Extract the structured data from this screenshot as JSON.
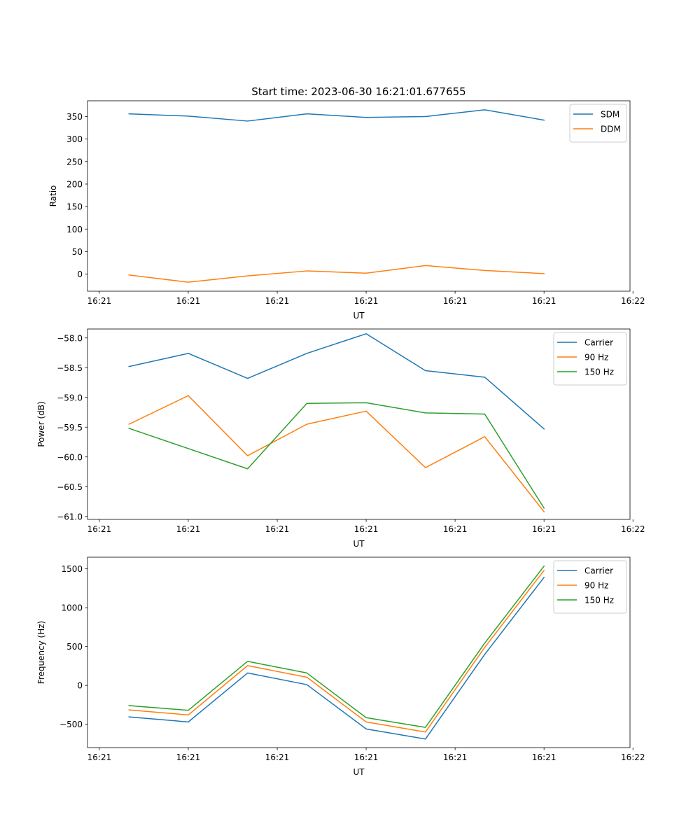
{
  "figure": {
    "title": "Start time: 2023-06-30 16:21:01.677655"
  },
  "colors": {
    "blue": "#1f77b4",
    "orange": "#ff7f0e",
    "green": "#2ca02c"
  },
  "chart_data": [
    {
      "type": "line",
      "title": "Start time: 2023-06-30 16:21:01.677655",
      "xlabel": "UT",
      "ylabel": "Ratio",
      "x": [
        1,
        2,
        3,
        4,
        5,
        6,
        7,
        8
      ],
      "xlim": [
        0.3,
        9.45
      ],
      "xticks": [
        0.5,
        2,
        3.5,
        5,
        6.5,
        8,
        9.5
      ],
      "xtick_labels": [
        "16:21",
        "16:21",
        "16:21",
        "16:21",
        "16:21",
        "16:21",
        "16:22"
      ],
      "ylim": [
        -38,
        385
      ],
      "yticks": [
        0,
        50,
        100,
        150,
        200,
        250,
        300,
        350
      ],
      "ytick_labels": [
        "0",
        "50",
        "100",
        "150",
        "200",
        "250",
        "300",
        "350"
      ],
      "legend": "top-right",
      "series": [
        {
          "name": "SDM",
          "color": "#1f77b4",
          "values": [
            356,
            351,
            340,
            356,
            348,
            350,
            365,
            342
          ]
        },
        {
          "name": "DDM",
          "color": "#ff7f0e",
          "values": [
            -2,
            -18,
            -4,
            7,
            2,
            19,
            8,
            1
          ]
        }
      ]
    },
    {
      "type": "line",
      "xlabel": "UT",
      "ylabel": "Power (dB)",
      "x": [
        1,
        2,
        3,
        4,
        5,
        6,
        7,
        8
      ],
      "xlim": [
        0.3,
        9.45
      ],
      "xticks": [
        0.5,
        2,
        3.5,
        5,
        6.5,
        8,
        9.5
      ],
      "xtick_labels": [
        "16:21",
        "16:21",
        "16:21",
        "16:21",
        "16:21",
        "16:21",
        "16:22"
      ],
      "ylim": [
        -61.05,
        -57.85
      ],
      "yticks": [
        -61.0,
        -60.5,
        -60.0,
        -59.5,
        -59.0,
        -58.5,
        -58.0
      ],
      "ytick_labels": [
        "−61.0",
        "−60.5",
        "−60.0",
        "−59.5",
        "−59.0",
        "−58.5",
        "−58.0"
      ],
      "legend": "top-right",
      "series": [
        {
          "name": "Carrier",
          "color": "#1f77b4",
          "values": [
            -58.48,
            -58.26,
            -58.68,
            -58.26,
            -57.93,
            -58.55,
            -58.66,
            -59.53
          ]
        },
        {
          "name": "90 Hz",
          "color": "#ff7f0e",
          "values": [
            -59.45,
            -58.97,
            -59.98,
            -59.45,
            -59.23,
            -60.18,
            -59.66,
            -60.92
          ]
        },
        {
          "name": "150 Hz",
          "color": "#2ca02c",
          "values": [
            -59.52,
            -59.86,
            -60.2,
            -59.1,
            -59.09,
            -59.26,
            -59.28,
            -60.86
          ]
        }
      ]
    },
    {
      "type": "line",
      "xlabel": "UT",
      "ylabel": "Frequency (Hz)",
      "x": [
        1,
        2,
        3,
        4,
        5,
        6,
        7,
        8
      ],
      "xlim": [
        0.3,
        9.45
      ],
      "xticks": [
        0.5,
        2,
        3.5,
        5,
        6.5,
        8,
        9.5
      ],
      "xtick_labels": [
        "16:21",
        "16:21",
        "16:21",
        "16:21",
        "16:21",
        "16:21",
        "16:22"
      ],
      "ylim": [
        -800,
        1650
      ],
      "yticks": [
        -500,
        0,
        500,
        1000,
        1500
      ],
      "ytick_labels": [
        "−500",
        "0",
        "500",
        "1000",
        "1500"
      ],
      "legend": "top-right",
      "series": [
        {
          "name": "Carrier",
          "color": "#1f77b4",
          "values": [
            -405,
            -470,
            160,
            10,
            -560,
            -690,
            400,
            1390
          ]
        },
        {
          "name": "90 Hz",
          "color": "#ff7f0e",
          "values": [
            -315,
            -380,
            255,
            105,
            -470,
            -600,
            490,
            1480
          ]
        },
        {
          "name": "150 Hz",
          "color": "#2ca02c",
          "values": [
            -260,
            -320,
            310,
            160,
            -415,
            -540,
            545,
            1535
          ]
        }
      ]
    }
  ]
}
